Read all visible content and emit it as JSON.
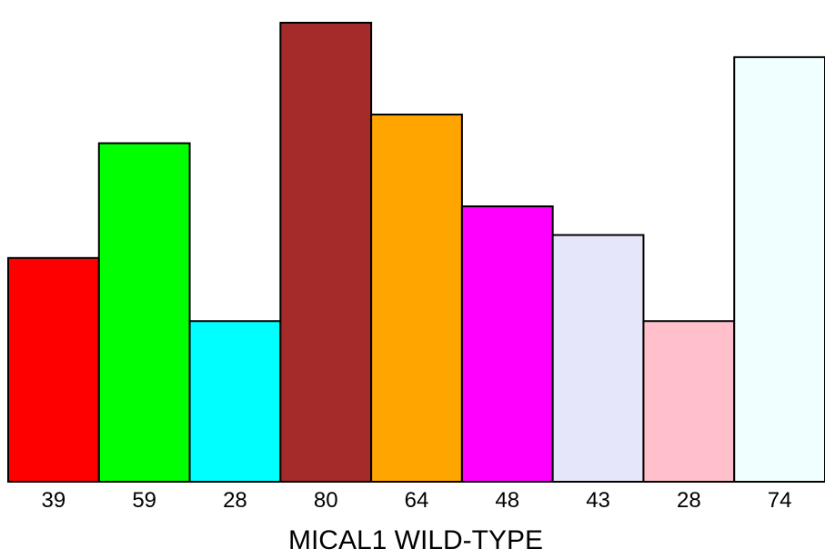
{
  "chart_data": {
    "type": "bar",
    "title": "",
    "xlabel": "MICAL1 WILD-TYPE",
    "ylabel": "",
    "categories": [
      "39",
      "59",
      "28",
      "80",
      "64",
      "48",
      "43",
      "28",
      "74"
    ],
    "values": [
      39,
      59,
      28,
      80,
      64,
      48,
      43,
      28,
      74
    ],
    "colors": [
      "#ff0000",
      "#00ff00",
      "#00ffff",
      "#a52a2a",
      "#ffa500",
      "#ff00ff",
      "#e6e6fa",
      "#ffc0cb",
      "#f0ffff"
    ],
    "ylim": [
      0,
      80
    ],
    "grid": false,
    "legend": "none"
  }
}
